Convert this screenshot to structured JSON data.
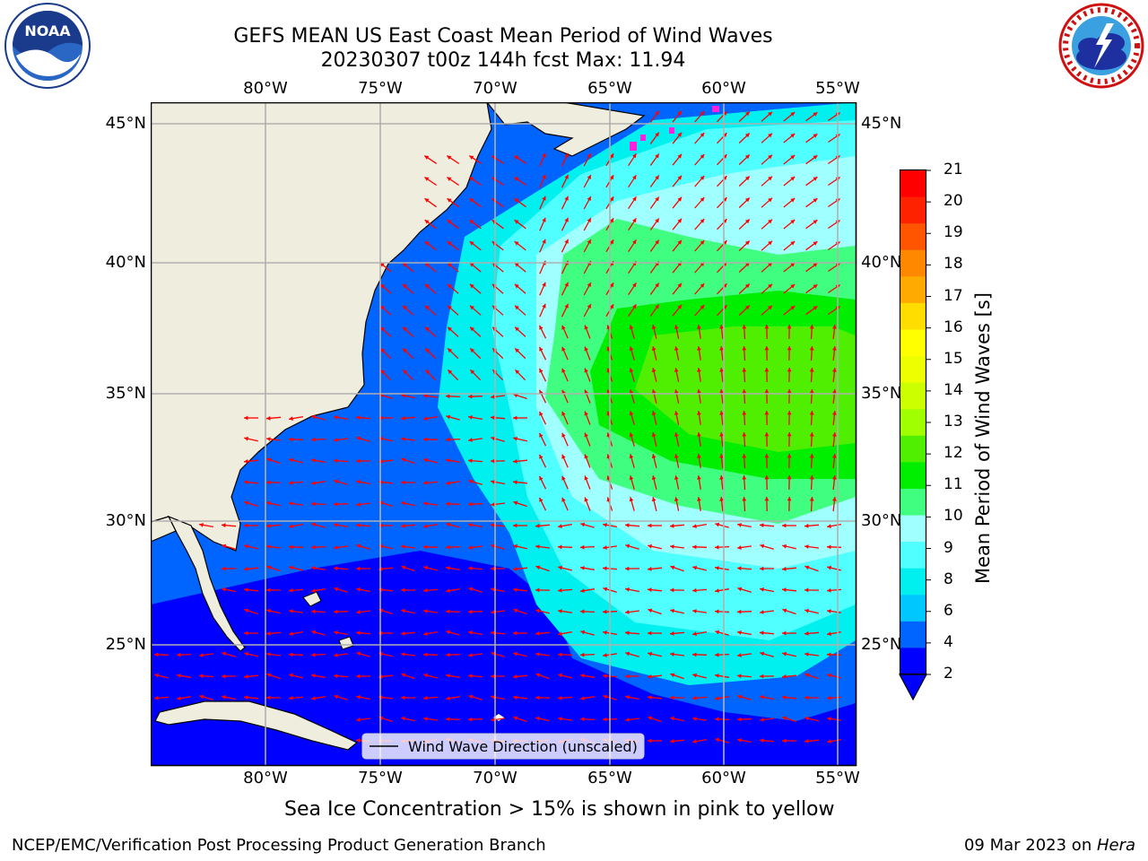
{
  "header": {
    "title_line1": "GEFS MEAN US East Coast Mean Period of Wind Waves",
    "title_line2": "20230307 t00z 144h fcst   Max: 11.94"
  },
  "logos": {
    "left": {
      "name": "noaa-logo",
      "text": "NOAA",
      "ring_text": "NATIONAL OCEANIC AND ATMOSPHERIC ADMINISTRATION · U.S. DEPARTMENT OF COMMERCE"
    },
    "right": {
      "name": "nws-logo",
      "ring_text": "NATIONAL WEATHER SERVICE"
    }
  },
  "map": {
    "lon_labels": [
      "80°W",
      "75°W",
      "70°W",
      "65°W",
      "60°W",
      "55°W"
    ],
    "lat_labels": [
      "45°N",
      "40°N",
      "35°N",
      "30°N",
      "25°N"
    ],
    "legend_label": "Wind Wave Direction (unscaled)",
    "colors": {
      "land": "#efedde",
      "coast": "#000000",
      "grid": "#b0b0b0",
      "arrow": "#ff0000",
      "ice": "#ff22dd"
    }
  },
  "colorbar": {
    "label": "Mean Period of Wind Waves [s]",
    "ticks": [
      "2",
      "4",
      "6",
      "8",
      "9",
      "10",
      "11",
      "12",
      "13",
      "14",
      "15",
      "16",
      "17",
      "18",
      "19",
      "20",
      "21"
    ],
    "colors": [
      "#0000ff",
      "#0064ff",
      "#00c8ff",
      "#00f0f0",
      "#50ffff",
      "#a0ffff",
      "#40ff80",
      "#00ee00",
      "#50ee00",
      "#a0ff00",
      "#ccff00",
      "#eeff00",
      "#ffff00",
      "#ffdd00",
      "#ffaa00",
      "#ff8800",
      "#ff5500",
      "#ff2200",
      "#ff0000"
    ]
  },
  "notes": {
    "sea_ice": "Sea Ice Concentration > 15% is shown in pink to yellow"
  },
  "footer": {
    "left": "NCEP/EMC/Verification Post Processing Product Generation Branch",
    "right_date": "09 Mar 2023 on ",
    "right_machine": "Hera"
  }
}
